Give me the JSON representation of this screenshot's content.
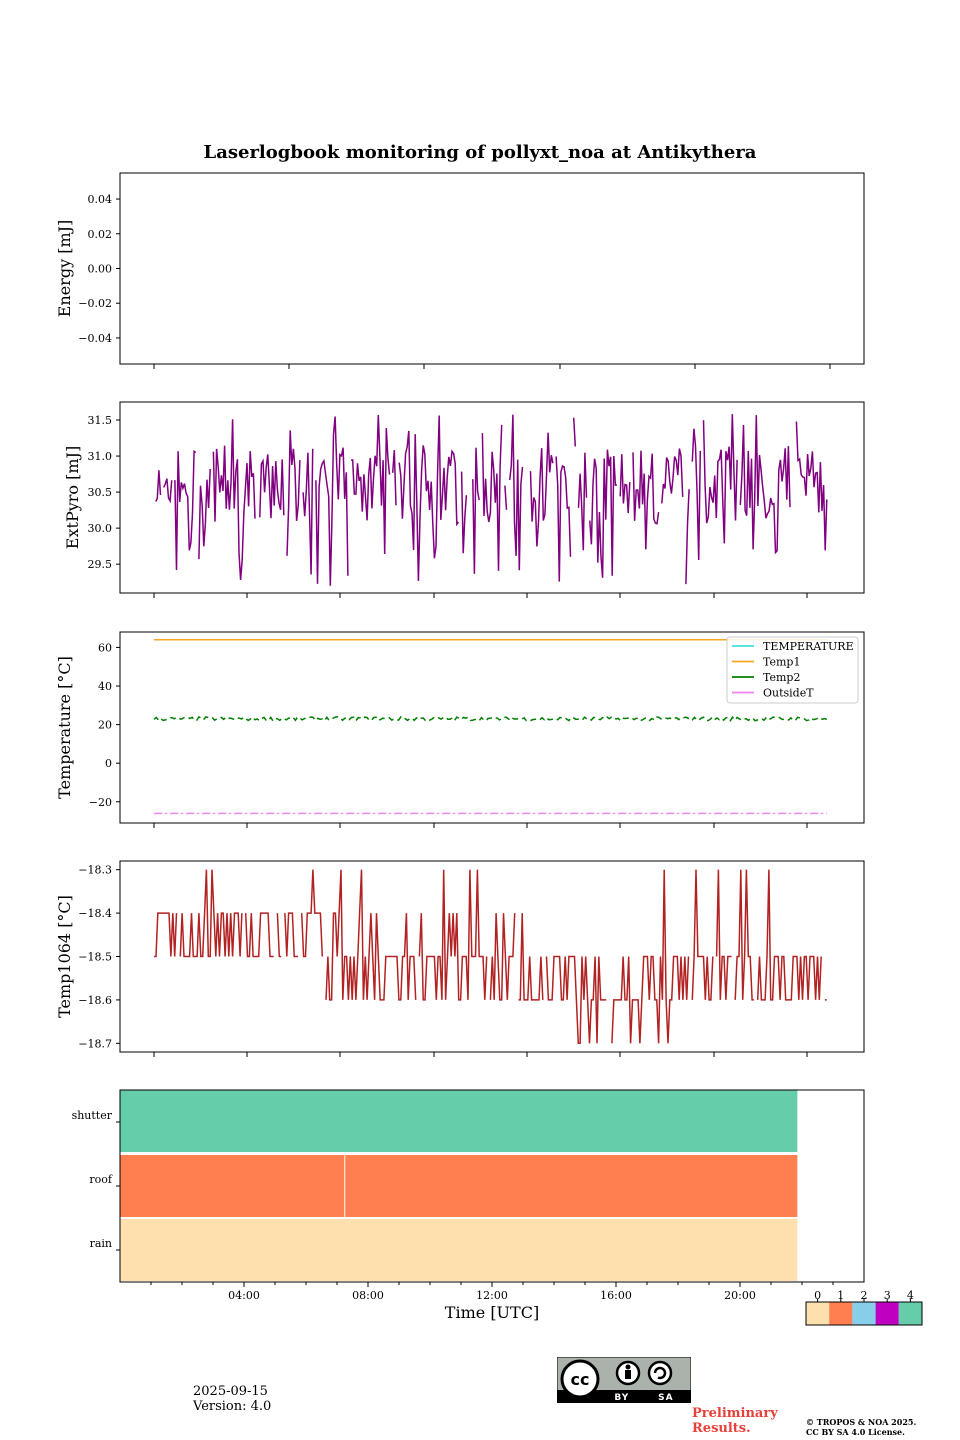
{
  "chart_data": [
    {
      "type": "line",
      "title": "Laserlogbook monitoring of pollyxt_noa at Antikythera",
      "xlabel": "",
      "ylabel": "Energy [mJ]",
      "ylim": [
        -0.055,
        0.055
      ],
      "yticks": [
        -0.04,
        -0.02,
        0.0,
        0.02,
        0.04
      ],
      "ytick_labels": [
        "−0.04",
        "−0.02",
        "0.00",
        "0.02",
        "0.04"
      ],
      "series": []
    },
    {
      "type": "line",
      "ylabel": "ExtPyro [mJ]",
      "ylim": [
        29.1,
        31.75
      ],
      "yticks": [
        29.5,
        30.0,
        30.5,
        31.0,
        31.5
      ],
      "ytick_labels": [
        "29.5",
        "30.0",
        "30.5",
        "31.0",
        "31.5"
      ],
      "xlim": [
        0,
        24
      ],
      "series": [
        {
          "name": "ExtPyro",
          "color": "#800080",
          "x_range": [
            1.1,
            22.8
          ],
          "mean": 30.6,
          "min": 29.2,
          "max": 31.6,
          "note": "dense noisy signal with gaps"
        }
      ]
    },
    {
      "type": "line",
      "ylabel": "Temperature [°C]",
      "ylim": [
        -31,
        68
      ],
      "yticks": [
        -20,
        0,
        20,
        40,
        60
      ],
      "ytick_labels": [
        "−20",
        "0",
        "20",
        "40",
        "60"
      ],
      "xlim": [
        0,
        24
      ],
      "legend_location": "top-right",
      "series": [
        {
          "name": "TEMPERATURE",
          "color": "#40e0e0",
          "values": []
        },
        {
          "name": "Temp1",
          "color": "#f5a623",
          "x": [
            1.1,
            22.8
          ],
          "values": [
            64,
            64
          ]
        },
        {
          "name": "Temp2",
          "color": "#008000",
          "x_range": [
            1.1,
            22.8
          ],
          "mean": 23,
          "style": "dashed"
        },
        {
          "name": "OutsideT",
          "color": "#ee82ee",
          "x_range": [
            1.1,
            22.8
          ],
          "mean": -26,
          "style": "dash-dot"
        }
      ]
    },
    {
      "type": "line",
      "ylabel": "Temp1064 [°C]",
      "ylim": [
        -18.72,
        -18.28
      ],
      "yticks": [
        -18.7,
        -18.6,
        -18.5,
        -18.4,
        -18.3
      ],
      "ytick_labels": [
        "−18.7",
        "−18.6",
        "−18.5",
        "−18.4",
        "−18.3"
      ],
      "xlim": [
        0,
        24
      ],
      "series": [
        {
          "name": "Temp1064",
          "color": "#b22222",
          "x_range": [
            1.1,
            22.8
          ],
          "levels": [
            -18.3,
            -18.4,
            -18.5,
            -18.6,
            -18.7
          ]
        }
      ]
    },
    {
      "type": "heatmap",
      "xlabel": "Time [UTC]",
      "rows": [
        "shutter",
        "roof",
        "rain"
      ],
      "xlim": [
        0,
        24
      ],
      "xticks": [
        4,
        8,
        12,
        16,
        20
      ],
      "xtick_labels": [
        "04:00",
        "08:00",
        "12:00",
        "16:00",
        "20:00"
      ],
      "data_end_hour": 21.85,
      "row_values": {
        "shutter": 4,
        "roof": 1,
        "rain": 0
      },
      "roof_break_hour": 7.25,
      "colorbar": {
        "levels": [
          "0",
          "1",
          "2",
          "3",
          "4"
        ],
        "colors": [
          "#fde0ad",
          "#ff7f50",
          "#87ceeb",
          "#c000c0",
          "#66cdaa"
        ]
      }
    }
  ],
  "footer": {
    "date": "2025-09-15",
    "version": "Version: 4.0",
    "preliminary": "Preliminary Results.",
    "copyright_line1": "© TROPOS & NOA 2025.",
    "copyright_line2": "CC BY SA 4.0 License.",
    "license_badge": "CC BY SA"
  }
}
